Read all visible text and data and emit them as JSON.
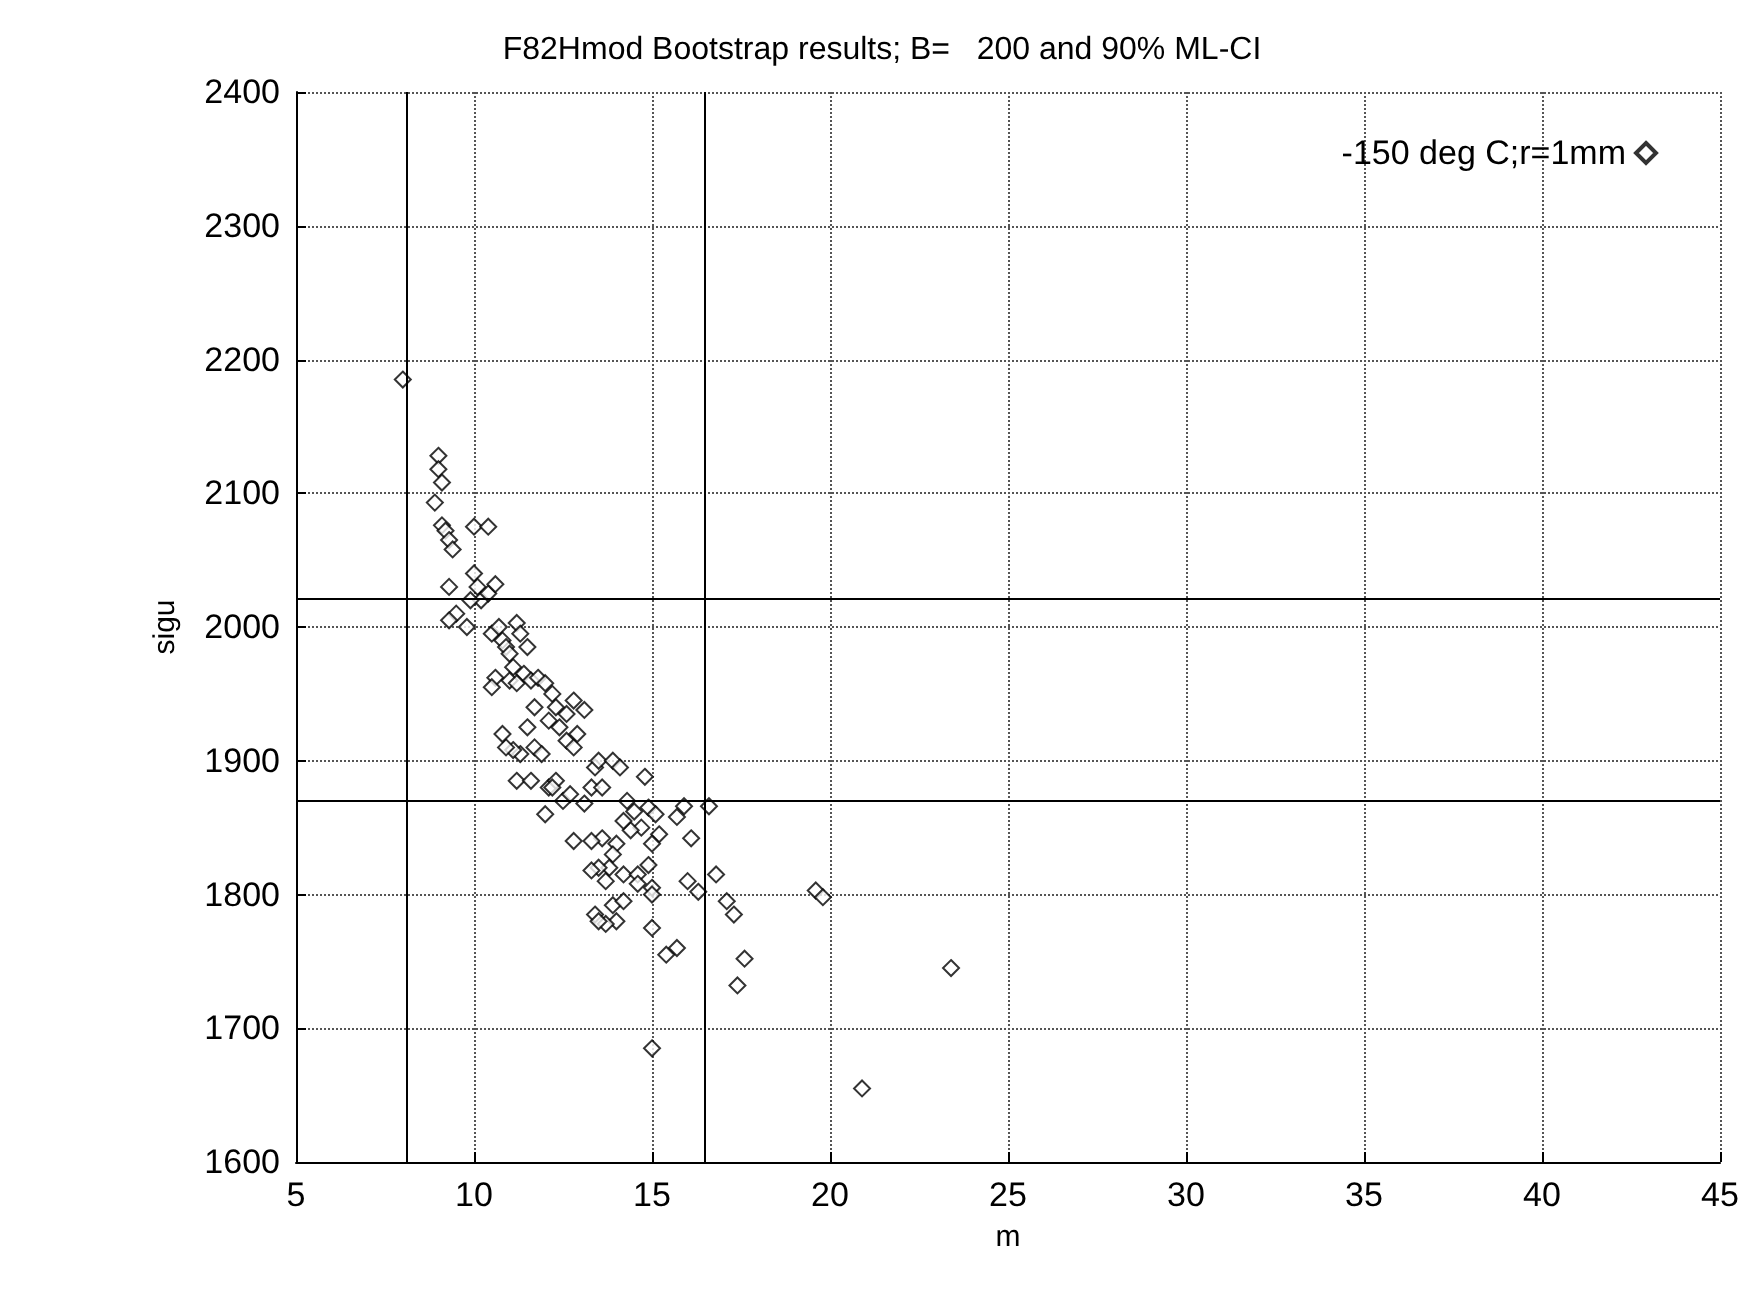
{
  "chart_data": {
    "type": "scatter",
    "title": "F82Hmod Bootstrap results; B=   200 and 90% ML-CI",
    "xlabel": "m",
    "ylabel": "sigu",
    "xlim": [
      5,
      45
    ],
    "xticks": [
      5,
      10,
      15,
      20,
      25,
      30,
      35,
      40,
      45
    ],
    "ylim": [
      1600,
      2400
    ],
    "yticks": [
      1600,
      1700,
      1800,
      1900,
      2000,
      2100,
      2200,
      2300,
      2400
    ],
    "grid": true,
    "legend": "top right",
    "marker": "diamond",
    "series": [
      {
        "name": "-150 deg C;r=1mm",
        "color": "#000000",
        "x": [
          8.0,
          9.0,
          9.0,
          9.1,
          8.9,
          9.1,
          9.2,
          9.3,
          9.4,
          9.3,
          10.0,
          10.4,
          9.5,
          9.3,
          9.8,
          10.0,
          10.1,
          10.2,
          10.4,
          10.6,
          9.9,
          10.5,
          10.7,
          10.8,
          10.9,
          11.0,
          11.2,
          11.3,
          11.5,
          11.1,
          11.4,
          10.6,
          10.5,
          11.0,
          11.2,
          11.6,
          11.8,
          12.0,
          12.2,
          12.3,
          11.7,
          11.5,
          11.3,
          11.1,
          11.7,
          11.9,
          12.1,
          12.4,
          12.6,
          12.8,
          12.6,
          12.8,
          13.1,
          12.9,
          10.9,
          10.8,
          11.2,
          11.6,
          12.1,
          12.3,
          12.5,
          12.7,
          12.0,
          12.2,
          13.1,
          13.3,
          13.4,
          13.6,
          13.5,
          13.9,
          14.1,
          14.3,
          14.5,
          14.8,
          14.9,
          15.1,
          14.7,
          14.4,
          14.2,
          14.0,
          13.9,
          13.6,
          13.3,
          12.8,
          13.8,
          14.2,
          13.7,
          13.5,
          13.3,
          15.2,
          15.0,
          14.9,
          14.6,
          15.0,
          14.6,
          15.9,
          16.6,
          15.7,
          16.1,
          16.0,
          16.3,
          16.8,
          17.1,
          17.3,
          13.9,
          14.2,
          14.0,
          13.7,
          13.4,
          13.5,
          15.0,
          15.0,
          15.7,
          15.4,
          17.6,
          17.4,
          15.0,
          19.6,
          19.8,
          20.9,
          23.4
        ],
        "values": [
          2185,
          2128,
          2118,
          2108,
          2093,
          2076,
          2072,
          2065,
          2058,
          2030,
          2075,
          2075,
          2010,
          2005,
          2000,
          2040,
          2030,
          2020,
          2025,
          2032,
          2020,
          1995,
          2000,
          1990,
          1985,
          1980,
          2003,
          1995,
          1985,
          1970,
          1965,
          1962,
          1955,
          1960,
          1958,
          1960,
          1962,
          1958,
          1950,
          1940,
          1940,
          1925,
          1905,
          1908,
          1910,
          1905,
          1930,
          1925,
          1915,
          1910,
          1935,
          1945,
          1938,
          1920,
          1910,
          1920,
          1885,
          1885,
          1880,
          1885,
          1870,
          1875,
          1860,
          1880,
          1868,
          1880,
          1895,
          1880,
          1900,
          1900,
          1895,
          1870,
          1862,
          1888,
          1865,
          1860,
          1850,
          1848,
          1855,
          1838,
          1830,
          1842,
          1840,
          1840,
          1820,
          1815,
          1810,
          1820,
          1818,
          1845,
          1838,
          1822,
          1815,
          1805,
          1808,
          1866,
          1866,
          1858,
          1842,
          1810,
          1802,
          1815,
          1795,
          1785,
          1792,
          1795,
          1780,
          1778,
          1785,
          1780,
          1775,
          1800,
          1760,
          1755,
          1752,
          1732,
          1685,
          1803,
          1798,
          1655,
          1745
        ]
      }
    ],
    "ref_lines": [
      {
        "axis": "x",
        "value": 8.1,
        "color": "#000000"
      },
      {
        "axis": "x",
        "value": 16.5,
        "color": "#000000"
      },
      {
        "axis": "y",
        "value": 2022,
        "color": "#000000"
      },
      {
        "axis": "y",
        "value": 1870,
        "color": "#000000"
      }
    ]
  }
}
